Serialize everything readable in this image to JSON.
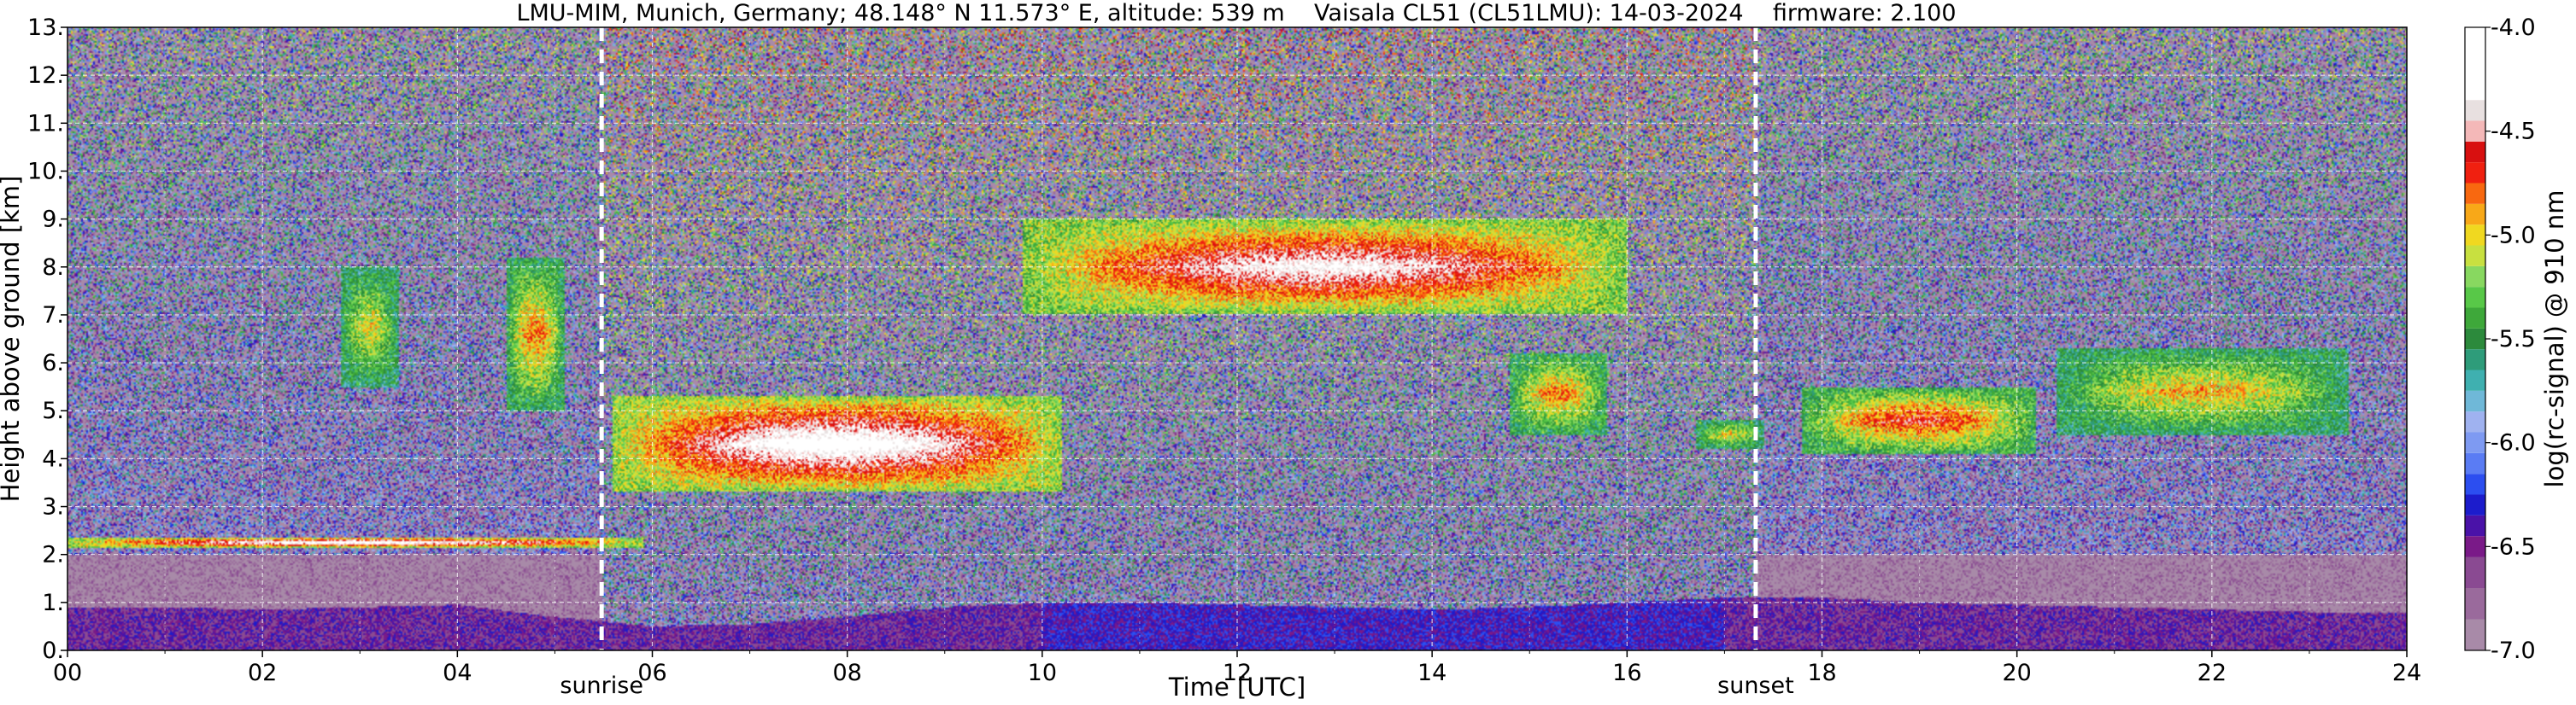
{
  "chart_data": {
    "type": "heatmap",
    "title": "LMU-MIM, Munich, Germany; 48.148° N 11.573° E, altitude: 539 m    Vaisala CL51 (CL51LMU): 14-03-2024    firmware: 2.100",
    "xlabel": "Time [UTC]",
    "ylabel": "Height above ground [km]",
    "colorbar_label": "log(rc-signal) @ 910 nm",
    "xlim": [
      0,
      24
    ],
    "ylim": [
      0,
      13
    ],
    "x_ticks": [
      0,
      2,
      4,
      6,
      8,
      10,
      12,
      14,
      16,
      18,
      20,
      22,
      24
    ],
    "x_tick_labels": [
      "00",
      "02",
      "04",
      "06",
      "08",
      "10",
      "12",
      "14",
      "16",
      "18",
      "20",
      "22",
      "24"
    ],
    "y_ticks": [
      0,
      1,
      2,
      3,
      4,
      5,
      6,
      7,
      8,
      9,
      10,
      11,
      12,
      13
    ],
    "y_tick_labels": [
      "0.",
      "1.",
      "2.",
      "3.",
      "4.",
      "5.",
      "6.",
      "7.",
      "8.",
      "9.",
      "10.",
      "11.",
      "12.",
      "13."
    ],
    "colorbar_range": [
      -7.0,
      -4.0
    ],
    "colorbar_ticks": [
      -7.0,
      -6.5,
      -6.0,
      -5.5,
      -5.0,
      -4.5,
      -4.0
    ],
    "colorbar_tick_labels": [
      "-7.0",
      "-6.5",
      "-6.0",
      "-5.5",
      "-5.0",
      "-4.5",
      "-4.0"
    ],
    "grid": true,
    "events": [
      {
        "name": "sunrise",
        "time": 5.48
      },
      {
        "name": "sunset",
        "time": 17.32
      }
    ],
    "features": {
      "boundary_layer": {
        "top_km": [
          0.9,
          0.9,
          0.85,
          0.9,
          0.95,
          0.7,
          0.5,
          0.55,
          0.7,
          0.9,
          1.0,
          1.0,
          0.95,
          0.9,
          0.85,
          0.9,
          1.0,
          1.1,
          1.1,
          1.0,
          0.95,
          0.9,
          0.85,
          0.8,
          0.8
        ],
        "hours": [
          0,
          1,
          2,
          3,
          4,
          5,
          6,
          7,
          8,
          9,
          10,
          11,
          12,
          13,
          14,
          15,
          16,
          17,
          18,
          19,
          20,
          21,
          22,
          23,
          24
        ]
      },
      "clouds": [
        {
          "t0": 5.6,
          "t1": 10.2,
          "base_km": 3.3,
          "top_km": 5.3,
          "peak_log": -4.0
        },
        {
          "t0": 9.8,
          "t1": 16.0,
          "base_km": 7.0,
          "top_km": 9.0,
          "peak_log": -4.2
        },
        {
          "t0": 14.8,
          "t1": 15.8,
          "base_km": 4.5,
          "top_km": 6.2,
          "peak_log": -4.8
        },
        {
          "t0": 16.7,
          "t1": 17.4,
          "base_km": 4.2,
          "top_km": 4.8,
          "peak_log": -5.0
        },
        {
          "t0": 17.8,
          "t1": 20.2,
          "base_km": 4.1,
          "top_km": 5.5,
          "peak_log": -4.6
        },
        {
          "t0": 20.4,
          "t1": 23.4,
          "base_km": 4.5,
          "top_km": 6.3,
          "peak_log": -4.9
        },
        {
          "t0": 2.8,
          "t1": 3.4,
          "base_km": 5.5,
          "top_km": 8.0,
          "peak_log": -5.0
        },
        {
          "t0": 4.5,
          "t1": 5.1,
          "base_km": 5.0,
          "top_km": 8.2,
          "peak_log": -4.8
        },
        {
          "t0": 0.0,
          "t1": 5.9,
          "base_km": 2.15,
          "top_km": 2.35,
          "peak_log": -4.0
        }
      ]
    }
  }
}
